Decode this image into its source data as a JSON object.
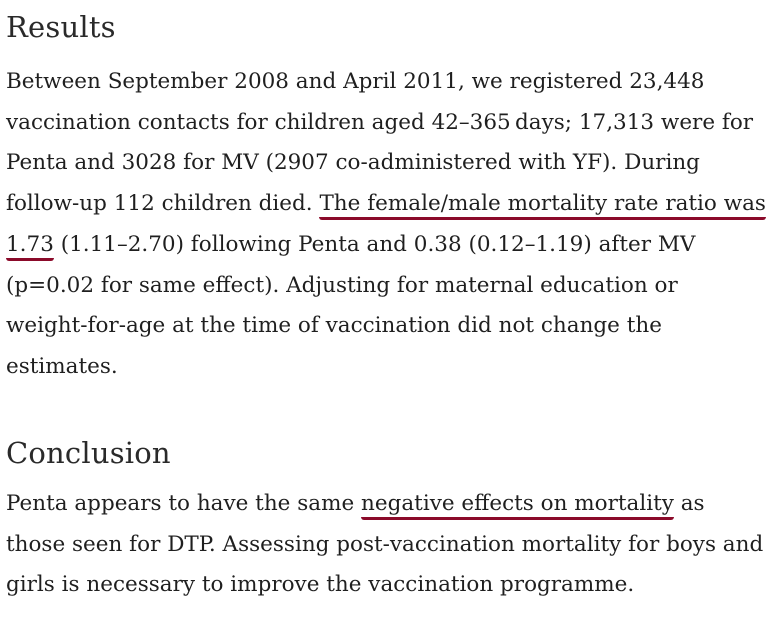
{
  "results": {
    "heading": "Results",
    "text_before_highlight": "Between September 2008 and April 2011, we registered 23,448 vaccination contacts for children aged 42–365 days; 17,313 were for Penta and 3028 for MV (2907 co-administered with YF). During follow-up 112 children died. ",
    "highlight": "The female/male mortality rate ratio was 1.73",
    "text_after_highlight": " (1.11–2.70) following Penta and 0.38 (0.12–1.19) after MV (p=0.02 for same effect). Adjusting for maternal education or weight-for-age at the time of vaccination did not change the estimates."
  },
  "conclusion": {
    "heading": "Conclusion",
    "text_before_highlight": "Penta appears to have the same ",
    "highlight": "negative effects on mortality",
    "text_after_highlight": " as those seen for DTP. Assessing post-vaccination mortality for boys and girls is necessary to improve the vaccination programme."
  },
  "colors": {
    "highlight_underline": "#8b0a2a",
    "text": "#1f1f1f"
  }
}
